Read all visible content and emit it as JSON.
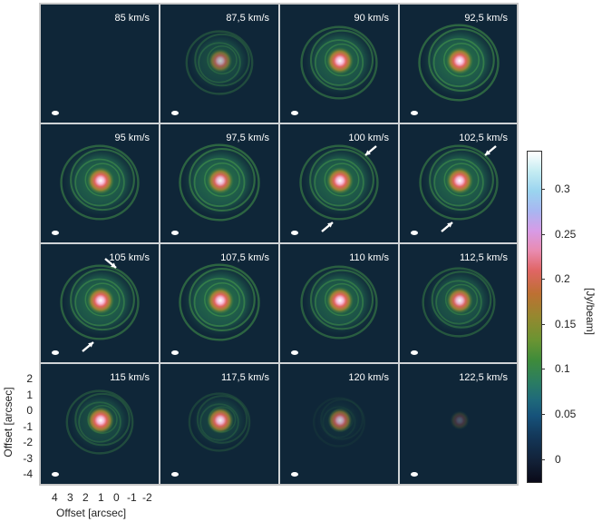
{
  "panels": [
    {
      "velocity": "85 km/s",
      "ring": 0.0,
      "core": 0.0,
      "arrows": []
    },
    {
      "velocity": "87,5 km/s",
      "ring": 0.55,
      "core": 0.7,
      "arrows": []
    },
    {
      "velocity": "90 km/s",
      "ring": 0.8,
      "core": 1.0,
      "arrows": []
    },
    {
      "velocity": "92,5 km/s",
      "ring": 0.9,
      "core": 1.0,
      "arrows": []
    },
    {
      "velocity": "95 km/s",
      "ring": 0.85,
      "core": 1.0,
      "arrows": []
    },
    {
      "velocity": "97,5 km/s",
      "ring": 0.9,
      "core": 0.95,
      "arrows": []
    },
    {
      "velocity": "100 km/s",
      "ring": 0.85,
      "core": 1.0,
      "arrows": [
        "upper-right",
        "lower-left"
      ]
    },
    {
      "velocity": "102,5 km/s",
      "ring": 0.85,
      "core": 1.0,
      "arrows": [
        "upper-right",
        "lower-left"
      ]
    },
    {
      "velocity": "105 km/s",
      "ring": 0.85,
      "core": 1.0,
      "arrows": [
        "top",
        "lower-left"
      ]
    },
    {
      "velocity": "107,5 km/s",
      "ring": 0.9,
      "core": 1.0,
      "arrows": []
    },
    {
      "velocity": "110 km/s",
      "ring": 0.8,
      "core": 1.0,
      "arrows": []
    },
    {
      "velocity": "112,5 km/s",
      "ring": 0.7,
      "core": 0.95,
      "arrows": []
    },
    {
      "velocity": "115 km/s",
      "ring": 0.55,
      "core": 1.0,
      "arrows": []
    },
    {
      "velocity": "117,5 km/s",
      "ring": 0.4,
      "core": 0.95,
      "arrows": []
    },
    {
      "velocity": "120 km/s",
      "ring": 0.15,
      "core": 0.75,
      "arrows": []
    },
    {
      "velocity": "122,5 km/s",
      "ring": 0.0,
      "core": 0.25,
      "arrows": []
    }
  ],
  "axes": {
    "y_label": "Offset [arcsec]",
    "y_ticks": [
      "2",
      "1",
      "0",
      "-1",
      "-2",
      "-3",
      "-4"
    ],
    "x_label": "Offset [arcsec]",
    "x_ticks": [
      "4",
      "3",
      "2",
      "1",
      "0",
      "-1",
      "-2"
    ]
  },
  "colorbar": {
    "label": "[Jy/beam]",
    "ticks": [
      "0.3",
      "0.25",
      "0.2",
      "0.15",
      "0.1",
      "0.05",
      "0"
    ]
  }
}
